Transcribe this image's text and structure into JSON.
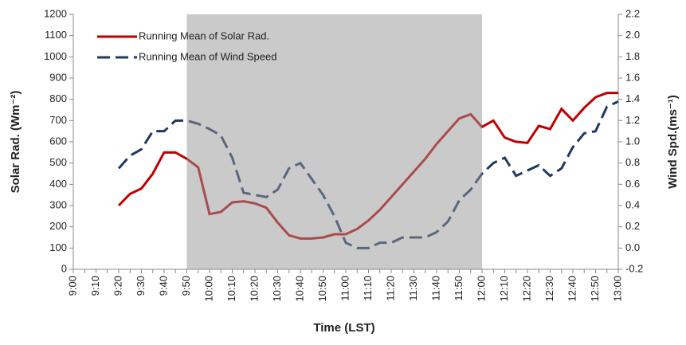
{
  "chart_data": {
    "type": "line",
    "xlabel": "Time (LST)",
    "ylabel": "Solar Rad. (Wm⁻²)",
    "y2label": "Wind Spd.(ms⁻¹)",
    "categories": [
      "9:00",
      null,
      "9:10",
      null,
      "9:20",
      null,
      "9:30",
      null,
      "9:40",
      null,
      "9:50",
      null,
      "10:00",
      null,
      "10:10",
      null,
      "10:20",
      null,
      "10:30",
      null,
      "10:40",
      null,
      "10:50",
      null,
      "11:00",
      null,
      "11:10",
      null,
      "11:20",
      null,
      "11:30",
      null,
      "11:40",
      null,
      "11:50",
      null,
      "12:00",
      null,
      "12:10",
      null,
      "12:20",
      null,
      "12:30",
      null,
      "12:40",
      null,
      "12:50",
      null,
      "13:00"
    ],
    "highlight": {
      "from": "9:50",
      "to": "12:00",
      "color": "#969696"
    },
    "series": [
      {
        "name": "Running Mean of Solar Rad.",
        "color": "#c00000",
        "dash": false,
        "values": [
          null,
          null,
          null,
          null,
          300,
          355,
          380,
          450,
          550,
          550,
          520,
          480,
          260,
          270,
          315,
          320,
          310,
          290,
          220,
          160,
          145,
          145,
          150,
          165,
          165,
          190,
          230,
          280,
          340,
          400,
          460,
          520,
          590,
          650,
          710,
          730,
          670,
          700,
          620,
          600,
          595,
          675,
          660,
          755,
          700,
          760,
          810,
          830,
          830
        ]
      },
      {
        "name": "Running Mean of Wind Speed",
        "color": "#1f3864",
        "dash": true,
        "axis": "y2",
        "values": [
          null,
          null,
          null,
          null,
          0.75,
          0.87,
          0.93,
          1.1,
          1.1,
          1.2,
          1.2,
          1.17,
          1.12,
          1.06,
          0.85,
          0.52,
          0.5,
          0.48,
          0.55,
          0.75,
          0.8,
          0.65,
          0.5,
          0.3,
          0.05,
          0.0,
          0.0,
          0.05,
          0.05,
          0.1,
          0.1,
          0.1,
          0.15,
          0.25,
          0.45,
          0.55,
          0.7,
          0.8,
          0.85,
          0.68,
          0.73,
          0.78,
          0.68,
          0.75,
          0.95,
          1.08,
          1.1,
          1.33,
          1.38
        ]
      }
    ],
    "ylim": [
      0,
      1200
    ],
    "yticks": [
      0,
      100,
      200,
      300,
      400,
      500,
      600,
      700,
      800,
      900,
      1000,
      1100,
      1200
    ],
    "y2lim": [
      -0.2,
      2.2
    ],
    "y2ticks": [
      -0.2,
      {
        "value": 0,
        "label": "0.0"
      },
      0.2,
      0.4,
      0.6,
      0.8,
      {
        "value": 1,
        "label": "1.0"
      },
      1.2,
      1.4,
      1.6,
      1.8,
      {
        "value": 2,
        "label": "2.0"
      },
      2.2
    ],
    "legend": "upper left",
    "grid": false
  }
}
